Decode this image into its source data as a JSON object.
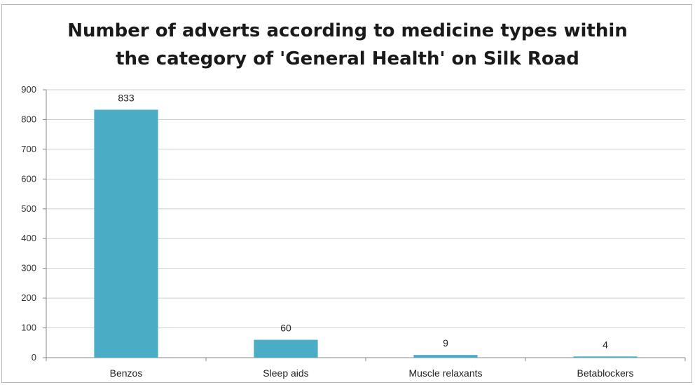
{
  "chart_data": {
    "type": "bar",
    "title": "Number of adverts according to medicine types within the category of 'General Health' on Silk Road",
    "title_lines": [
      "Number of adverts according to medicine types within",
      "the category of 'General Health' on Silk Road"
    ],
    "categories": [
      "Benzos",
      "Sleep aids",
      "Muscle relaxants",
      "Betablockers"
    ],
    "values": [
      833,
      60,
      9,
      4
    ],
    "data_labels": [
      "833",
      "60",
      "9",
      "4"
    ],
    "ylim": [
      0,
      900
    ],
    "yticks": [
      0,
      100,
      200,
      300,
      400,
      500,
      600,
      700,
      800,
      900
    ],
    "xlabel": "",
    "ylabel": "",
    "grid": true,
    "legend": "none",
    "bar_color": "#4bacc6",
    "grid_color": "#d0d0d0"
  }
}
